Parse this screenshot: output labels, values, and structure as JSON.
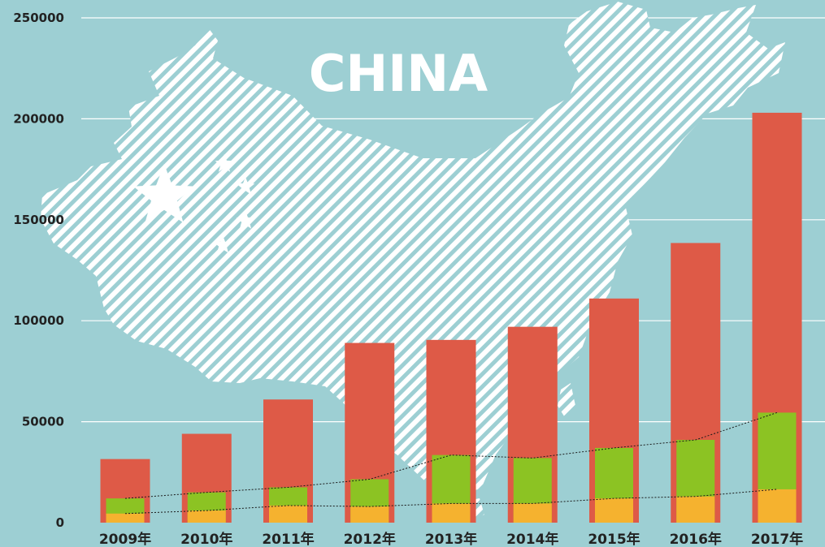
{
  "chart_data": {
    "type": "bar",
    "title": "CHINA",
    "categories": [
      "2009年",
      "2010年",
      "2011年",
      "2012年",
      "2013年",
      "2014年",
      "2015年",
      "2016年",
      "2017年"
    ],
    "series": [
      {
        "values": [
          31500,
          44000,
          61000,
          89000,
          90500,
          97000,
          111000,
          138500,
          203000
        ]
      },
      {
        "values": [
          12000,
          15000,
          17500,
          21500,
          33500,
          32000,
          37000,
          41000,
          54500
        ]
      },
      {
        "values": [
          4500,
          6000,
          8500,
          8000,
          9500,
          9500,
          12000,
          13000,
          16500
        ]
      }
    ],
    "ylim": [
      0,
      250000
    ],
    "yticks": [
      0,
      50000,
      100000,
      150000,
      200000,
      250000
    ],
    "grid": true,
    "colors": {
      "background": "#9dcfd3",
      "series": [
        "#de5a47",
        "#8cc323",
        "#f5b22f"
      ],
      "map": "#ffffff",
      "grid": "#ffffff"
    }
  }
}
